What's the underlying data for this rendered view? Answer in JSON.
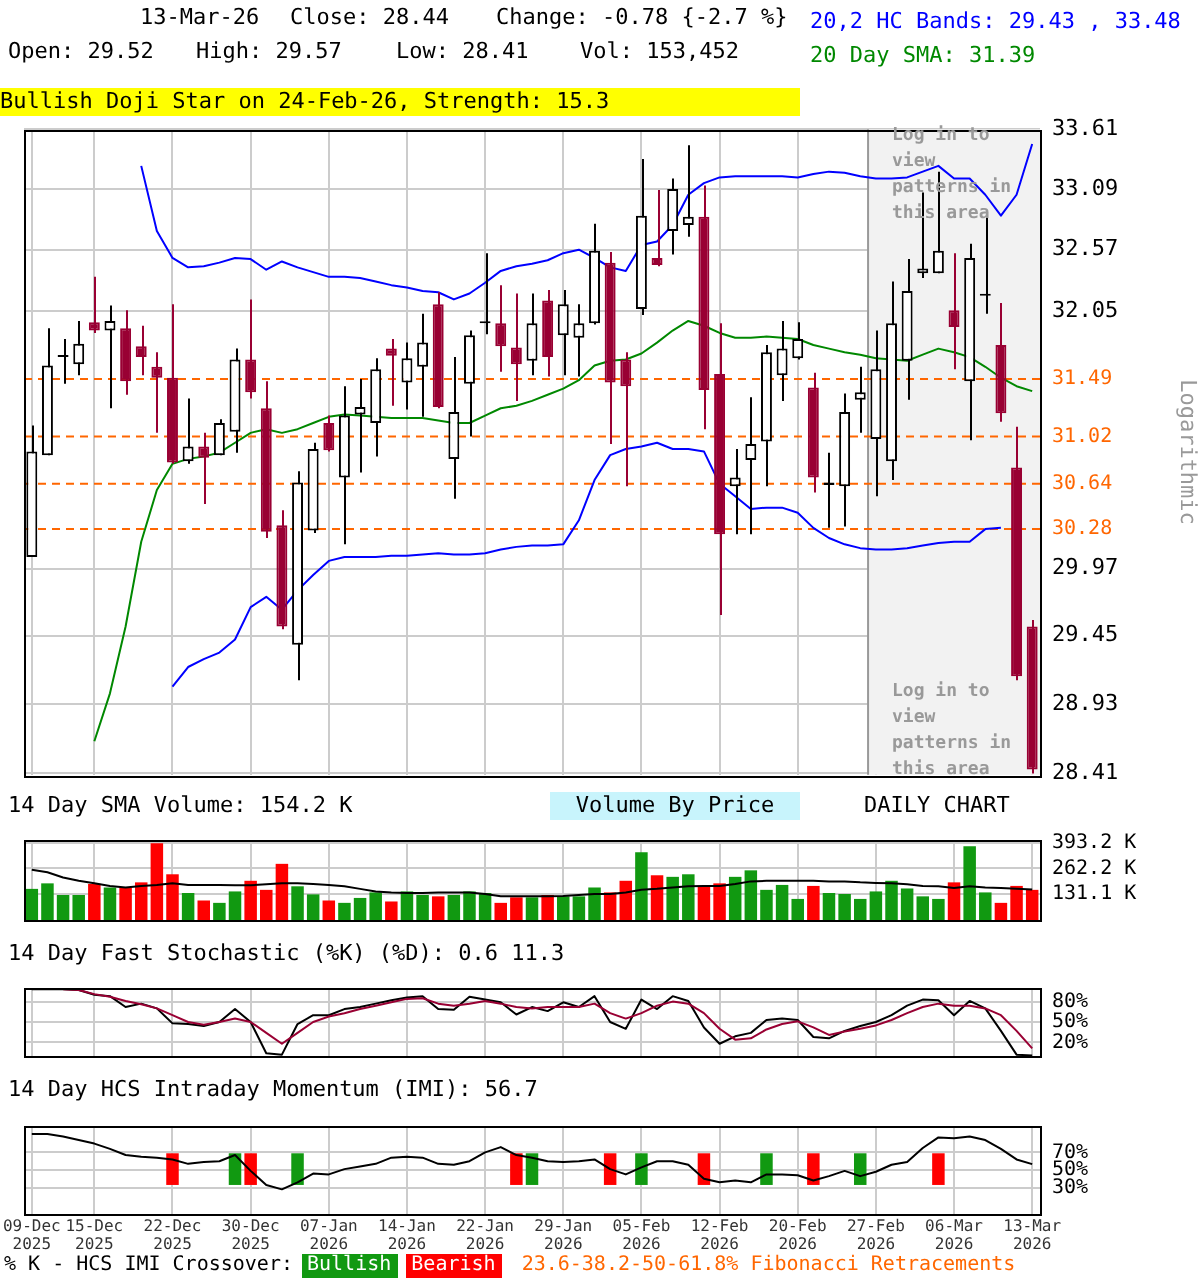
{
  "chart_data": [
    {
      "type": "candlestick",
      "ylabel": "Logarithmic",
      "log": "y",
      "grid": true,
      "tick_labels": "y",
      "legend": "top right",
      "categories": [
        "09-Dec\n2025",
        null,
        null,
        null,
        "15-Dec\n2025",
        null,
        null,
        null,
        null,
        "22-Dec\n2025",
        null,
        null,
        null,
        null,
        "30-Dec\n2025",
        null,
        null,
        null,
        null,
        "07-Jan\n2026",
        null,
        null,
        null,
        null,
        "14-Jan\n2026",
        null,
        null,
        null,
        null,
        "22-Jan\n2026",
        null,
        null,
        null,
        null,
        "29-Jan\n2026",
        null,
        null,
        null,
        null,
        "05-Feb\n2026",
        null,
        null,
        null,
        null,
        "12-Feb\n2026",
        null,
        null,
        null,
        null,
        "20-Feb\n2026",
        null,
        null,
        null,
        null,
        "27-Feb\n2026",
        null,
        null,
        null,
        null,
        "06-Mar\n2026",
        null,
        null,
        null,
        null,
        "13-Mar\n2026"
      ],
      "ohlc": [
        [
          30.06,
          31.11,
          30.06,
          30.9
        ],
        [
          30.87,
          31.91,
          30.87,
          31.6
        ],
        [
          31.67,
          31.82,
          31.45,
          31.68
        ],
        [
          31.61,
          31.97,
          31.52,
          31.78
        ],
        [
          31.96,
          32.34,
          31.87,
          31.89
        ],
        [
          31.89,
          32.1,
          31.25,
          31.97
        ],
        [
          31.91,
          32.06,
          31.36,
          31.47
        ],
        [
          31.76,
          31.93,
          31.52,
          31.67
        ],
        [
          31.59,
          31.71,
          31.05,
          31.5
        ],
        [
          31.5,
          32.11,
          30.8,
          30.81
        ],
        [
          30.82,
          31.33,
          30.8,
          30.94
        ],
        [
          30.94,
          31.05,
          30.48,
          30.85
        ],
        [
          30.87,
          31.16,
          30.87,
          31.13
        ],
        [
          31.06,
          31.74,
          30.89,
          31.65
        ],
        [
          31.65,
          32.15,
          31.33,
          31.38
        ],
        [
          31.25,
          31.47,
          30.21,
          30.26
        ],
        [
          30.31,
          30.43,
          29.5,
          29.52
        ],
        [
          29.38,
          30.74,
          29.11,
          30.65
        ],
        [
          30.27,
          30.97,
          30.25,
          30.92
        ],
        [
          31.13,
          31.19,
          30.9,
          30.91
        ],
        [
          30.69,
          31.43,
          30.16,
          31.19
        ],
        [
          31.2,
          31.49,
          30.73,
          31.26
        ],
        [
          31.13,
          31.66,
          30.86,
          31.57
        ],
        [
          31.74,
          31.82,
          31.27,
          31.68
        ],
        [
          31.46,
          31.79,
          31.24,
          31.66
        ],
        [
          31.59,
          32.03,
          31.18,
          31.79
        ],
        [
          32.11,
          32.21,
          31.25,
          31.26
        ],
        [
          30.84,
          31.67,
          30.52,
          31.22
        ],
        [
          31.45,
          31.89,
          31.02,
          31.85
        ],
        [
          31.95,
          32.54,
          31.86,
          31.96
        ],
        [
          31.95,
          32.27,
          31.55,
          31.76
        ],
        [
          31.75,
          32.2,
          31.31,
          31.61
        ],
        [
          31.64,
          32.2,
          31.52,
          31.95
        ],
        [
          32.14,
          32.23,
          31.51,
          31.67
        ],
        [
          31.85,
          32.23,
          31.52,
          32.11
        ],
        [
          31.83,
          32.11,
          31.51,
          31.95
        ],
        [
          31.95,
          32.79,
          31.94,
          32.56
        ],
        [
          32.46,
          32.55,
          30.96,
          31.46
        ],
        [
          31.65,
          31.71,
          30.62,
          31.43
        ],
        [
          32.07,
          33.35,
          32.02,
          32.86
        ],
        [
          32.5,
          33.08,
          32.43,
          32.44
        ],
        [
          32.73,
          33.18,
          32.53,
          33.09
        ],
        [
          32.78,
          33.47,
          32.68,
          32.85
        ],
        [
          32.85,
          33.12,
          31.08,
          31.4
        ],
        [
          31.53,
          31.95,
          29.61,
          30.24
        ],
        [
          30.62,
          30.92,
          30.24,
          30.69
        ],
        [
          30.83,
          31.34,
          30.24,
          30.96
        ],
        [
          30.98,
          31.77,
          30.62,
          31.71
        ],
        [
          31.52,
          31.97,
          31.31,
          31.74
        ],
        [
          31.66,
          31.96,
          31.65,
          31.82
        ],
        [
          31.42,
          31.54,
          30.57,
          30.69
        ],
        [
          30.63,
          30.89,
          30.29,
          30.65
        ],
        [
          30.62,
          31.37,
          30.3,
          31.22
        ],
        [
          31.32,
          31.59,
          31.05,
          31.38
        ],
        [
          31.0,
          31.89,
          30.54,
          31.57
        ],
        [
          30.82,
          32.3,
          30.67,
          31.95
        ],
        [
          31.64,
          32.49,
          31.32,
          32.22
        ],
        [
          32.37,
          33.06,
          32.33,
          32.41
        ],
        [
          32.37,
          33.24,
          32.37,
          32.56
        ],
        [
          32.06,
          32.54,
          31.57,
          31.92
        ],
        [
          31.47,
          32.62,
          30.99,
          32.5
        ],
        [
          32.18,
          32.88,
          32.03,
          32.19
        ],
        [
          31.77,
          32.12,
          31.14,
          31.21
        ],
        [
          30.77,
          31.1,
          29.11,
          29.14
        ],
        [
          29.52,
          29.57,
          28.41,
          28.44
        ]
      ],
      "colors": [
        "#000000",
        "#000000",
        "#000000",
        "#000000",
        "#990033",
        "#000000",
        "#990033",
        "#990033",
        "#990033",
        "#990033",
        "#000000",
        "#990033",
        "#000000",
        "#000000",
        "#990033",
        "#990033",
        "#990033",
        "#000000",
        "#000000",
        "#990033",
        "#000000",
        "#000000",
        "#000000",
        "#990033",
        "#000000",
        "#000000",
        "#990033",
        "#000000",
        "#000000",
        "#000000",
        "#990033",
        "#990033",
        "#000000",
        "#990033",
        "#000000",
        "#000000",
        "#000000",
        "#990033",
        "#990033",
        "#000000",
        "#990033",
        "#000000",
        "#000000",
        "#990033",
        "#990033",
        "#000000",
        "#000000",
        "#000000",
        "#000000",
        "#000000",
        "#990033",
        "#000000",
        "#000000",
        "#000000",
        "#000000",
        "#000000",
        "#000000",
        "#000000",
        "#000000",
        "#990033",
        "#000000",
        "#000000",
        "#990033",
        "#990033",
        "#990033"
      ],
      "series": [
        {
          "type": "line",
          "name": "20,2 HC Bands: 29.43 , 33.48",
          "color": "#0000ff",
          "values": [
            null,
            null,
            null,
            null,
            null,
            null,
            null,
            33.29,
            32.73,
            32.5,
            32.42,
            32.43,
            32.46,
            32.5,
            32.49,
            32.4,
            32.47,
            32.42,
            32.38,
            32.34,
            32.34,
            32.33,
            32.3,
            32.27,
            32.25,
            32.22,
            32.21,
            32.15,
            32.2,
            32.29,
            32.39,
            32.43,
            32.45,
            32.48,
            32.54,
            32.57,
            32.5,
            32.42,
            32.39,
            32.61,
            32.64,
            32.78,
            33.04,
            33.14,
            33.19,
            33.2,
            33.2,
            33.2,
            33.2,
            33.19,
            33.22,
            33.24,
            33.23,
            33.2,
            33.18,
            33.18,
            33.19,
            33.24,
            33.29,
            33.18,
            33.18,
            33.04,
            32.86,
            33.04,
            33.48
          ]
        },
        {
          "type": "line",
          "color": "#0000ff",
          "values": [
            null,
            null,
            null,
            null,
            null,
            null,
            null,
            null,
            null,
            29.06,
            29.21,
            29.27,
            29.32,
            29.42,
            29.67,
            29.75,
            29.65,
            29.8,
            29.92,
            30.03,
            30.06,
            30.06,
            30.06,
            30.07,
            30.07,
            30.08,
            30.09,
            30.08,
            30.08,
            30.09,
            30.12,
            30.14,
            30.15,
            30.15,
            30.16,
            30.35,
            30.67,
            30.87,
            30.92,
            30.94,
            30.97,
            30.92,
            30.92,
            30.9,
            30.64,
            30.54,
            30.44,
            30.45,
            30.45,
            30.41,
            30.29,
            30.21,
            30.16,
            30.13,
            30.12,
            30.12,
            30.13,
            30.15,
            30.17,
            30.18,
            30.18,
            30.28,
            30.29,
            null,
            null
          ]
        },
        {
          "type": "line",
          "name": "20 Day SMA: 31.39",
          "color": "#008800",
          "values": [
            null,
            null,
            null,
            null,
            28.65,
            29.01,
            29.52,
            30.18,
            30.59,
            30.8,
            30.84,
            30.86,
            30.89,
            30.97,
            31.05,
            31.08,
            31.05,
            31.08,
            31.13,
            31.18,
            31.2,
            31.19,
            31.18,
            31.17,
            31.17,
            31.17,
            31.15,
            31.13,
            31.13,
            31.19,
            31.25,
            31.27,
            31.31,
            31.36,
            31.41,
            31.48,
            31.6,
            31.64,
            31.65,
            31.7,
            31.79,
            31.89,
            31.97,
            31.93,
            31.87,
            31.83,
            31.83,
            31.84,
            31.83,
            31.82,
            31.77,
            31.74,
            31.71,
            31.69,
            31.66,
            31.65,
            31.64,
            31.69,
            31.74,
            31.71,
            31.67,
            31.59,
            31.5,
            31.43,
            31.39
          ]
        }
      ],
      "ylim": [
        28.41,
        33.61
      ],
      "yticks": [
        28.41,
        28.93,
        29.45,
        29.97,
        32.05,
        32.57,
        33.09,
        33.61
      ],
      "ref_lines": [
        {
          "axis": "y",
          "value": 31.49,
          "label": "31.49",
          "color": "#ff6600",
          "line_style": "dashed"
        },
        {
          "axis": "y",
          "value": 31.02,
          "label": "31.02",
          "color": "#ff6600",
          "line_style": "dashed"
        },
        {
          "axis": "y",
          "value": 30.64,
          "label": "30.64",
          "color": "#ff6600",
          "line_style": "dashed"
        },
        {
          "axis": "y",
          "value": 30.28,
          "label": "30.28",
          "color": "#ff6600",
          "line_style": "dashed"
        }
      ],
      "bands": [
        {
          "axis": "x",
          "from": "27-Feb\n2026",
          "to": "13-Mar\n2026",
          "color": "#f2f2f2"
        }
      ],
      "annotations": [
        "13-Mar-26",
        "Close: 28.44",
        "Change: -0.78 {-2.7 %}",
        "Open: 29.52",
        "High: 29.57",
        "Low: 28.41",
        "Vol: 153,452",
        "Bullish Doji Star on 24-Feb-26, Strength: 15.3",
        "Log in to view patterns in this area",
        "Log in to view patterns in this area"
      ]
    },
    {
      "type": "bar",
      "title": "14 Day SMA Volume: 154.2 K",
      "grid": true,
      "tick_labels": "y",
      "categories": [
        "09-Dec\n2025",
        null,
        null,
        null,
        "15-Dec\n2025",
        null,
        null,
        null,
        null,
        "22-Dec\n2025",
        null,
        null,
        null,
        null,
        "30-Dec\n2025",
        null,
        null,
        null,
        null,
        "07-Jan\n2026",
        null,
        null,
        null,
        null,
        "14-Jan\n2026",
        null,
        null,
        null,
        null,
        "22-Jan\n2026",
        null,
        null,
        null,
        null,
        "29-Jan\n2026",
        null,
        null,
        null,
        null,
        "05-Feb\n2026",
        null,
        null,
        null,
        null,
        "12-Feb\n2026",
        null,
        null,
        null,
        null,
        "20-Feb\n2026",
        null,
        null,
        null,
        null,
        "27-Feb\n2026",
        null,
        null,
        null,
        null,
        "06-Mar\n2026",
        null,
        null,
        null,
        null,
        "13-Mar\n2026"
      ],
      "series": [
        {
          "type": "bar",
          "values": [
            158,
            186,
            127,
            127,
            183,
            165,
            165,
            191,
            390,
            232,
            137,
            99,
            87,
            145,
            199,
            153,
            285,
            171,
            130,
            99,
            87,
            112,
            140,
            94,
            145,
            127,
            120,
            127,
            145,
            137,
            87,
            115,
            115,
            127,
            120,
            120,
            165,
            140,
            199,
            344,
            227,
            219,
            232,
            171,
            186,
            219,
            252,
            153,
            178,
            107,
            173,
            137,
            132,
            107,
            145,
            199,
            160,
            120,
            107,
            191,
            374,
            140,
            87,
            173,
            153
          ],
          "colors": [
            "#119911",
            "#119911",
            "#119911",
            "#119911",
            "#ff0000",
            "#119911",
            "#ff0000",
            "#ff0000",
            "#ff0000",
            "#ff0000",
            "#119911",
            "#ff0000",
            "#119911",
            "#119911",
            "#ff0000",
            "#ff0000",
            "#ff0000",
            "#119911",
            "#119911",
            "#ff0000",
            "#119911",
            "#119911",
            "#119911",
            "#ff0000",
            "#119911",
            "#119911",
            "#ff0000",
            "#119911",
            "#119911",
            "#119911",
            "#ff0000",
            "#ff0000",
            "#119911",
            "#ff0000",
            "#119911",
            "#119911",
            "#119911",
            "#ff0000",
            "#ff0000",
            "#119911",
            "#ff0000",
            "#119911",
            "#119911",
            "#ff0000",
            "#ff0000",
            "#119911",
            "#119911",
            "#119911",
            "#119911",
            "#119911",
            "#ff0000",
            "#119911",
            "#119911",
            "#119911",
            "#119911",
            "#119911",
            "#119911",
            "#119911",
            "#119911",
            "#ff0000",
            "#119911",
            "#119911",
            "#ff0000",
            "#ff0000",
            "#ff0000"
          ]
        },
        {
          "type": "line",
          "color": "#000000",
          "values": [
            255,
            242,
            216,
            199,
            186,
            173,
            165,
            173,
            178,
            186,
            178,
            178,
            178,
            176,
            176,
            181,
            186,
            186,
            183,
            178,
            171,
            158,
            145,
            140,
            137,
            137,
            140,
            140,
            140,
            132,
            120,
            120,
            120,
            120,
            122,
            127,
            132,
            132,
            140,
            153,
            158,
            165,
            171,
            173,
            173,
            183,
            196,
            199,
            199,
            199,
            199,
            196,
            196,
            191,
            188,
            186,
            181,
            173,
            171,
            163,
            171,
            165,
            163,
            158,
            154.2
          ]
        }
      ],
      "ylim": [
        0,
        406
      ],
      "yticks": [
        {
          "value": 131.1,
          "label": "131.1 K"
        },
        {
          "value": 262.2,
          "label": "262.2 K"
        },
        {
          "value": 393.2,
          "label": "393.2 K"
        }
      ],
      "annotations": [
        "Volume By Price",
        "DAILY CHART"
      ]
    },
    {
      "type": "line",
      "title": "14 Day Fast Stochastic (%K) (%D): 0.6   11.3",
      "grid": true,
      "tick_labels": "y",
      "categories": [
        "09-Dec\n2025",
        null,
        null,
        null,
        "15-Dec\n2025",
        null,
        null,
        null,
        null,
        "22-Dec\n2025",
        null,
        null,
        null,
        null,
        "30-Dec\n2025",
        null,
        null,
        null,
        null,
        "07-Jan\n2026",
        null,
        null,
        null,
        null,
        "14-Jan\n2026",
        null,
        null,
        null,
        null,
        "22-Jan\n2026",
        null,
        null,
        null,
        null,
        "29-Jan\n2026",
        null,
        null,
        null,
        null,
        "05-Feb\n2026",
        null,
        null,
        null,
        null,
        "12-Feb\n2026",
        null,
        null,
        null,
        null,
        "20-Feb\n2026",
        null,
        null,
        null,
        null,
        "27-Feb\n2026",
        null,
        null,
        null,
        null,
        "06-Mar\n2026",
        null,
        null,
        null,
        null,
        "13-Mar\n2026"
      ],
      "series": [
        {
          "type": "line",
          "color": "#990033",
          "values": [
            null,
            null,
            98,
            97,
            91,
            87,
            81,
            76,
            70,
            60,
            50,
            46,
            50,
            55,
            50,
            34,
            18,
            34,
            50,
            58,
            63,
            69,
            74,
            79,
            84,
            85,
            77,
            74,
            77,
            81,
            77,
            72,
            70,
            72,
            72,
            72,
            77,
            63,
            55,
            63,
            74,
            80,
            77,
            63,
            40,
            24,
            26,
            39,
            47,
            51,
            42,
            31,
            36,
            40,
            45,
            53,
            63,
            72,
            77,
            74,
            74,
            70,
            60,
            37,
            11.3
          ]
        },
        {
          "type": "line",
          "color": "#000000",
          "values": [
            98,
            98,
            98,
            97,
            90,
            88,
            72,
            77,
            70,
            48,
            47,
            44,
            50,
            69,
            50,
            4,
            2,
            47,
            60,
            60,
            69,
            72,
            77,
            82,
            86,
            88,
            69,
            68,
            87,
            83,
            79,
            61,
            72,
            66,
            79,
            72,
            88,
            50,
            40,
            83,
            69,
            88,
            81,
            42,
            18,
            29,
            34,
            53,
            55,
            53,
            28,
            26,
            37,
            44,
            50,
            60,
            74,
            83,
            82,
            60,
            81,
            70,
            37,
            2,
            0.6
          ]
        }
      ],
      "ylim": [
        0,
        100
      ],
      "yticks": [
        {
          "value": 20,
          "label": "20%"
        },
        {
          "value": 50,
          "label": "50%"
        },
        {
          "value": 80,
          "label": "80%"
        }
      ]
    },
    {
      "type": "line",
      "title": "14 Day HCS Intraday Momentum (IMI): 56.7",
      "grid": true,
      "legend": "bottom",
      "legend_title": "% K - HCS IMI Crossover:",
      "categories": [
        "09-Dec\n2025",
        null,
        null,
        null,
        "15-Dec\n2025",
        null,
        null,
        null,
        null,
        "22-Dec\n2025",
        null,
        null,
        null,
        null,
        "30-Dec\n2025",
        null,
        null,
        null,
        null,
        "07-Jan\n2026",
        null,
        null,
        null,
        null,
        "14-Jan\n2026",
        null,
        null,
        null,
        null,
        "22-Jan\n2026",
        null,
        null,
        null,
        null,
        "29-Jan\n2026",
        null,
        null,
        null,
        null,
        "05-Feb\n2026",
        null,
        null,
        null,
        null,
        "12-Feb\n2026",
        null,
        null,
        null,
        null,
        "20-Feb\n2026",
        null,
        null,
        null,
        null,
        "27-Feb\n2026",
        null,
        null,
        null,
        null,
        "06-Mar\n2026",
        null,
        null,
        null,
        null,
        "13-Mar\n2026"
      ],
      "series": [
        {
          "type": "bar",
          "name": "Bullish",
          "color": "#119911",
          "values": [
            null,
            null,
            null,
            null,
            null,
            null,
            null,
            null,
            null,
            null,
            null,
            null,
            null,
            36,
            null,
            null,
            null,
            36,
            null,
            null,
            null,
            null,
            null,
            null,
            null,
            null,
            null,
            null,
            null,
            null,
            null,
            null,
            36,
            null,
            null,
            null,
            null,
            null,
            null,
            36,
            null,
            null,
            null,
            null,
            null,
            null,
            null,
            36,
            null,
            null,
            null,
            null,
            null,
            36,
            null,
            null,
            null,
            null,
            null,
            null,
            null,
            null,
            null,
            null,
            null
          ],
          "base": [
            null,
            null,
            null,
            null,
            null,
            null,
            null,
            null,
            null,
            null,
            null,
            null,
            null,
            33,
            null,
            null,
            null,
            33,
            null,
            null,
            null,
            null,
            null,
            null,
            null,
            null,
            null,
            null,
            null,
            null,
            null,
            null,
            33,
            null,
            null,
            null,
            null,
            null,
            null,
            33,
            null,
            null,
            null,
            null,
            null,
            null,
            null,
            33,
            null,
            null,
            null,
            null,
            null,
            33,
            null,
            null,
            null,
            null,
            null,
            null,
            null,
            null,
            null,
            null,
            null
          ]
        },
        {
          "type": "bar",
          "name": "Bearish",
          "color": "#ff0000",
          "values": [
            null,
            null,
            null,
            null,
            null,
            null,
            null,
            null,
            null,
            36,
            null,
            null,
            null,
            null,
            36,
            null,
            null,
            null,
            null,
            null,
            null,
            null,
            null,
            null,
            null,
            null,
            null,
            null,
            null,
            null,
            null,
            36,
            null,
            null,
            null,
            null,
            null,
            36,
            null,
            null,
            null,
            null,
            null,
            36,
            null,
            null,
            null,
            null,
            null,
            null,
            36,
            null,
            null,
            null,
            null,
            null,
            null,
            null,
            36,
            null,
            null,
            null,
            null,
            null,
            null
          ],
          "base": [
            null,
            null,
            null,
            null,
            null,
            null,
            null,
            null,
            null,
            33,
            null,
            null,
            null,
            null,
            33,
            null,
            null,
            null,
            null,
            null,
            null,
            null,
            null,
            null,
            null,
            null,
            null,
            null,
            null,
            null,
            null,
            33,
            null,
            null,
            null,
            null,
            null,
            33,
            null,
            null,
            null,
            null,
            null,
            33,
            null,
            null,
            null,
            null,
            null,
            null,
            33,
            null,
            null,
            null,
            null,
            null,
            null,
            null,
            33,
            null,
            null,
            null,
            null,
            null,
            null
          ]
        },
        {
          "type": "line",
          "color": "#000000",
          "values": [
            91,
            91,
            88,
            84,
            80,
            74,
            67,
            65,
            64,
            62,
            57,
            59,
            60,
            67,
            49,
            33,
            28,
            36,
            46,
            45,
            51,
            54,
            57,
            64,
            65,
            64,
            57,
            56,
            60,
            70,
            76,
            67,
            64,
            60,
            59,
            60,
            62,
            51,
            45,
            53,
            60,
            60,
            56,
            40,
            36,
            38,
            36,
            45,
            45,
            44,
            38,
            43,
            49,
            43,
            48,
            56,
            59,
            75,
            87,
            86,
            88,
            84,
            74,
            62,
            56.7
          ]
        }
      ],
      "ylim": [
        0,
        100
      ],
      "yticks": [
        {
          "value": 30,
          "label": "30%"
        },
        {
          "value": 50,
          "label": "50%"
        },
        {
          "value": 70,
          "label": "70%"
        }
      ],
      "annotations": [
        "23.6-38.2-50-61.8% Fibonacci Retracements"
      ]
    }
  ]
}
